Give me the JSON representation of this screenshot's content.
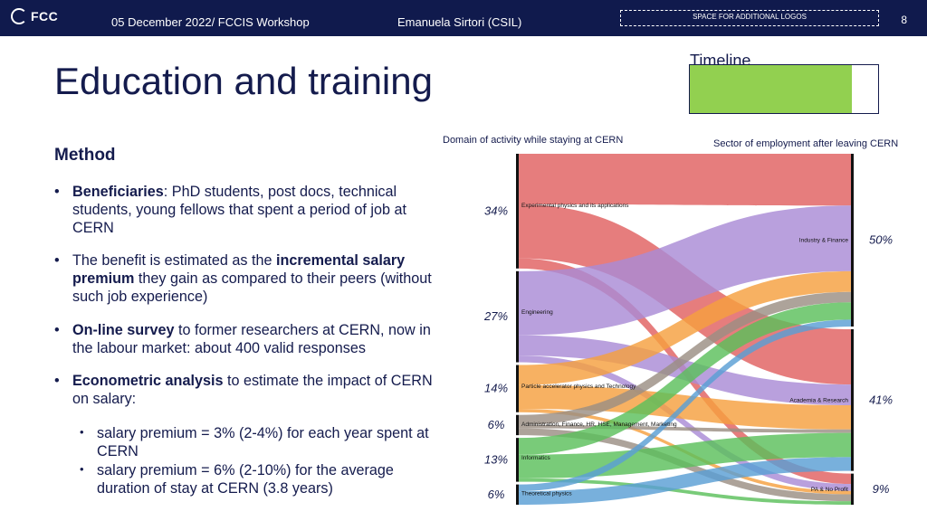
{
  "header": {
    "logo_text": "FCC",
    "date_event": "05 December 2022/ FCCIS Workshop",
    "presenter": "Emanuela Sirtori (CSIL)",
    "logos_placeholder": "SPACE FOR ADDITIONAL LOGOS",
    "page_number": "8"
  },
  "title": "Education and training",
  "timeline": {
    "label": "Timeline",
    "progress": 0.86,
    "fill_color": "#92d050"
  },
  "method": {
    "heading": "Method",
    "b1_bold": "Beneficiaries",
    "b1_text": ": PhD students, post docs, technical students, young fellows that spent a period of job at CERN",
    "b2_text1": "The benefit is estimated as the ",
    "b2_bold": "incremental salary premium",
    "b2_text2": " they gain as compared to their peers (without such job experience)",
    "b3_bold": "On-line survey",
    "b3_text": " to former researchers at CERN, now in the labour market: about 400 valid responses",
    "b4_bold": "Econometric analysis",
    "b4_text": " to estimate the impact of CERN on salary:",
    "sub1": "salary premium = 3% (2-4%) for each year spent at CERN",
    "sub2": "salary premium = 6% (2-10%) for the average duration of stay at CERN (3.8 years)"
  },
  "sankey": {
    "left_title": "Domain of activity while staying at CERN",
    "right_title": "Sector of employment after leaving CERN",
    "left_nodes": [
      {
        "label": "Experimental physics and its applications",
        "pct": "34%",
        "color": "#e06060"
      },
      {
        "label": "Engineering",
        "pct": "27%",
        "color": "#a98bd6"
      },
      {
        "label": "Particle accelerator physics and Technology",
        "pct": "14%",
        "color": "#f5a040"
      },
      {
        "label": "Administration, Finance, HR, HSE, Management, Marketing",
        "pct": "6%",
        "color": "#9b8f84"
      },
      {
        "label": "Informatics",
        "pct": "13%",
        "color": "#5cbf5c"
      },
      {
        "label": "Theoretical physics",
        "pct": "6%",
        "color": "#5a9fd4"
      }
    ],
    "right_nodes": [
      {
        "label": "Industry & Finance",
        "pct": "50%"
      },
      {
        "label": "Academia & Research",
        "pct": "41%"
      },
      {
        "label": "PA & No Profit",
        "pct": "9%"
      }
    ],
    "flows": [
      {
        "from": 0,
        "to": 0,
        "value": 15
      },
      {
        "from": 0,
        "to": 1,
        "value": 16
      },
      {
        "from": 0,
        "to": 2,
        "value": 3
      },
      {
        "from": 1,
        "to": 0,
        "value": 19
      },
      {
        "from": 1,
        "to": 1,
        "value": 6
      },
      {
        "from": 1,
        "to": 2,
        "value": 2
      },
      {
        "from": 2,
        "to": 0,
        "value": 6
      },
      {
        "from": 2,
        "to": 1,
        "value": 7
      },
      {
        "from": 2,
        "to": 2,
        "value": 1
      },
      {
        "from": 3,
        "to": 0,
        "value": 3
      },
      {
        "from": 3,
        "to": 1,
        "value": 1
      },
      {
        "from": 3,
        "to": 2,
        "value": 2
      },
      {
        "from": 4,
        "to": 0,
        "value": 5
      },
      {
        "from": 4,
        "to": 1,
        "value": 7
      },
      {
        "from": 4,
        "to": 2,
        "value": 1
      },
      {
        "from": 5,
        "to": 0,
        "value": 2
      },
      {
        "from": 5,
        "to": 1,
        "value": 4
      }
    ]
  }
}
